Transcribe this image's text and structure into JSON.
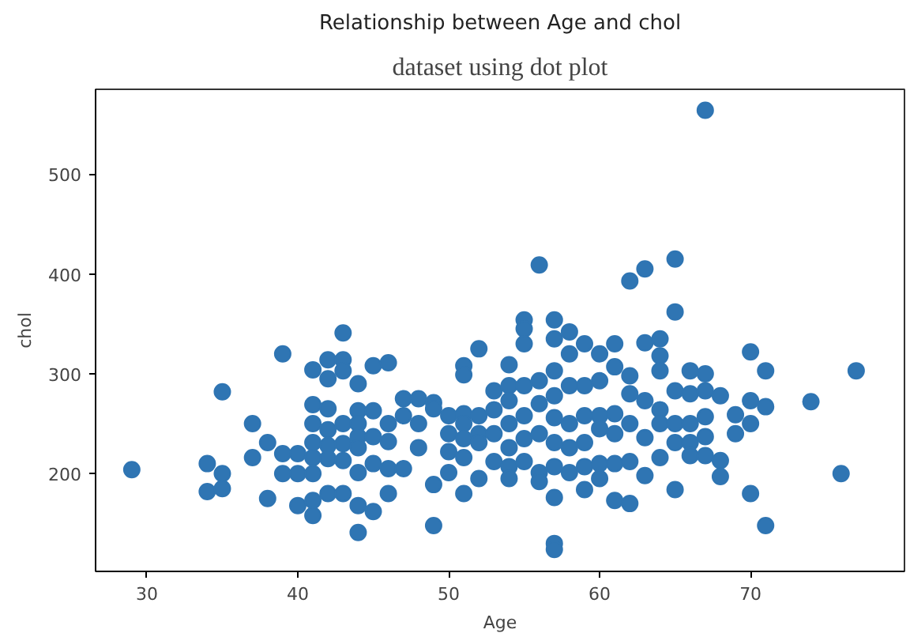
{
  "chart_data": {
    "type": "scatter",
    "title": "Relationship between Age and chol",
    "xlabel": "Age",
    "ylabel": "chol",
    "annotations": [
      "dataset using dot plot"
    ],
    "marker": "circle",
    "grid": false,
    "xlim": [
      26.6,
      80.2
    ],
    "ylim": [
      102,
      585
    ],
    "xticks": [
      30,
      40,
      50,
      60,
      70
    ],
    "yticks": [
      200,
      300,
      400,
      500
    ],
    "series": [
      {
        "color": "#2f75b3",
        "x": [
          29,
          34,
          34,
          35,
          35,
          35,
          37,
          37,
          38,
          38,
          39,
          39,
          39,
          40,
          40,
          40,
          41,
          41,
          41,
          41,
          41,
          41,
          41,
          41,
          42,
          42,
          42,
          42,
          42,
          42,
          42,
          43,
          43,
          43,
          43,
          43,
          43,
          43,
          44,
          44,
          44,
          44,
          44,
          44,
          44,
          44,
          45,
          45,
          45,
          45,
          45,
          46,
          46,
          46,
          46,
          46,
          47,
          47,
          47,
          48,
          48,
          48,
          49,
          49,
          49,
          49,
          50,
          50,
          50,
          50,
          51,
          51,
          51,
          51,
          51,
          51,
          51,
          52,
          52,
          52,
          52,
          52,
          53,
          53,
          53,
          53,
          54,
          54,
          54,
          54,
          54,
          54,
          54,
          55,
          55,
          55,
          55,
          55,
          55,
          55,
          56,
          56,
          56,
          56,
          56,
          56,
          57,
          57,
          57,
          57,
          57,
          57,
          57,
          57,
          57,
          57,
          58,
          58,
          58,
          58,
          58,
          58,
          59,
          59,
          59,
          59,
          59,
          59,
          60,
          60,
          60,
          60,
          60,
          60,
          61,
          61,
          61,
          61,
          61,
          61,
          62,
          62,
          62,
          62,
          62,
          62,
          63,
          63,
          63,
          63,
          63,
          64,
          64,
          64,
          64,
          64,
          64,
          65,
          65,
          65,
          65,
          65,
          65,
          66,
          66,
          66,
          66,
          66,
          67,
          67,
          67,
          67,
          67,
          67,
          68,
          68,
          68,
          69,
          69,
          70,
          70,
          70,
          70,
          71,
          71,
          71,
          74,
          76,
          77
        ],
        "values": [
          204,
          210,
          182,
          200,
          185,
          282,
          250,
          216,
          231,
          175,
          320,
          220,
          200,
          220,
          200,
          168,
          304,
          269,
          250,
          231,
          216,
          200,
          173,
          158,
          314,
          295,
          265,
          244,
          228,
          215,
          180,
          341,
          314,
          303,
          250,
          230,
          213,
          180,
          290,
          263,
          250,
          237,
          226,
          201,
          168,
          141,
          308,
          263,
          237,
          210,
          162,
          311,
          250,
          232,
          205,
          180,
          275,
          258,
          205,
          275,
          250,
          226,
          271,
          265,
          189,
          148,
          258,
          240,
          222,
          201,
          308,
          299,
          260,
          235,
          216,
          180,
          250,
          325,
          258,
          240,
          231,
          195,
          283,
          264,
          240,
          212,
          309,
          288,
          273,
          250,
          226,
          207,
          195,
          354,
          345,
          330,
          288,
          258,
          235,
          212,
          409,
          293,
          270,
          240,
          201,
          192,
          354,
          335,
          303,
          278,
          256,
          231,
          207,
          176,
          130,
          124,
          342,
          320,
          288,
          250,
          226,
          201,
          330,
          288,
          258,
          231,
          207,
          184,
          320,
          293,
          258,
          245,
          210,
          195,
          330,
          307,
          260,
          240,
          210,
          173,
          393,
          298,
          280,
          250,
          212,
          170,
          405,
          331,
          273,
          236,
          198,
          335,
          318,
          303,
          264,
          250,
          216,
          415,
          362,
          283,
          250,
          231,
          184,
          303,
          280,
          250,
          231,
          218,
          564,
          300,
          283,
          257,
          237,
          218,
          278,
          213,
          197,
          259,
          240,
          322,
          273,
          250,
          180,
          303,
          267,
          148,
          272,
          200,
          303
        ]
      }
    ]
  }
}
